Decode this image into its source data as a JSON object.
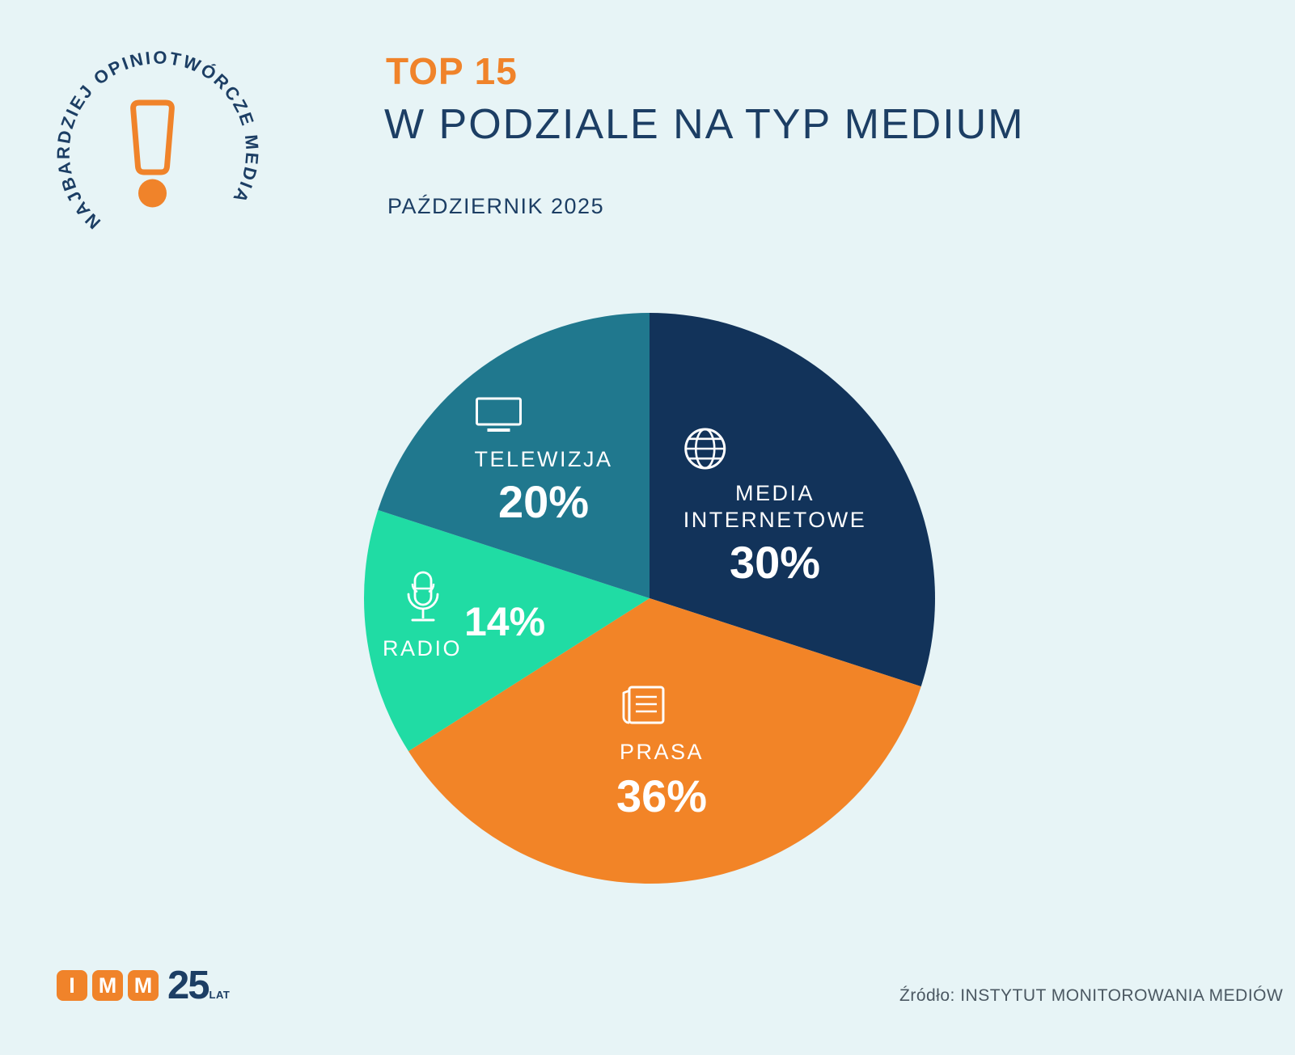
{
  "page": {
    "background": "#e7f4f6"
  },
  "logo": {
    "circular_text": "NAJBARDZIEJ OPINIOTWÓRCZE MEDIA",
    "text_color": "#1c3e64",
    "accent_color": "#f0832a"
  },
  "header": {
    "overline": "TOP 15",
    "title": "W PODZIALE NA TYP MEDIUM",
    "subtitle": "PAŹDZIERNIK 2025",
    "overline_color": "#f0832a",
    "title_color": "#1c3e64"
  },
  "chart_data": {
    "type": "pie",
    "title": "TOP 15 w podziale na typ medium",
    "subtitle": "Październik 2025",
    "unit": "%",
    "start_angle_deg": 0,
    "direction": "clockwise",
    "legend_position": "labels-inside-slices",
    "label_color": "#ffffff",
    "categories": [
      "MEDIA INTERNETOWE",
      "PRASA",
      "RADIO",
      "TELEWIZJA"
    ],
    "values": [
      30,
      36,
      14,
      20
    ],
    "slices": [
      {
        "id": "media-internetowe",
        "label": "MEDIA INTERNETOWE",
        "label_lines": [
          "MEDIA",
          "INTERNETOWE"
        ],
        "value": 30,
        "display": "30%",
        "color": "#12335a",
        "icon": "globe-icon"
      },
      {
        "id": "prasa",
        "label": "PRASA",
        "value": 36,
        "display": "36%",
        "color": "#f28427",
        "icon": "newspaper-icon"
      },
      {
        "id": "radio",
        "label": "RADIO",
        "value": 14,
        "display": "14%",
        "color": "#20dca4",
        "icon": "microphone-icon"
      },
      {
        "id": "telewizja",
        "label": "TELEWIZJA",
        "value": 20,
        "display": "20%",
        "color": "#20788e",
        "icon": "tv-icon"
      }
    ]
  },
  "footer": {
    "imm_logo": {
      "boxes": [
        "I",
        "M",
        "M"
      ],
      "years": "25",
      "years_suffix": "LAT",
      "box_color": "#f0832a",
      "text_color": "#1c3e64"
    },
    "source": "Źródło: INSTYTUT MONITOROWANIA MEDIÓW"
  }
}
